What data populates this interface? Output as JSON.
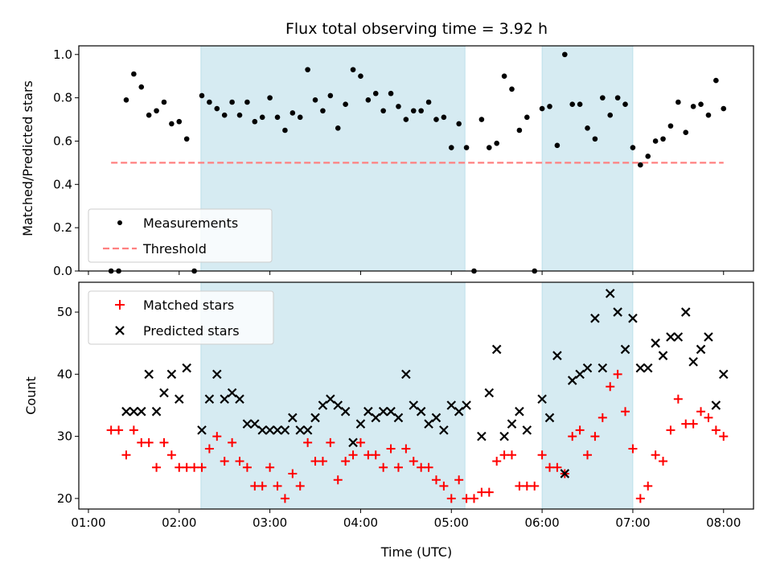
{
  "chart_data": [
    {
      "type": "scatter",
      "title": "Flux total observing time = 3.92 h",
      "xlabel": "",
      "ylabel": "Matched/Predicted stars",
      "ylim": [
        0,
        1.04
      ],
      "xlim_hours": [
        0.894,
        8.33
      ],
      "yticks": [
        "0.0",
        "0.2",
        "0.4",
        "0.6",
        "0.8",
        "1.0"
      ],
      "ytick_values": [
        0,
        0.2,
        0.4,
        0.6,
        0.8,
        1.0
      ],
      "time_start_hours": 1.25,
      "time_step_minutes": 5,
      "shaded_intervals_hours": [
        [
          2.24,
          5.15
        ],
        [
          6.0,
          7.0
        ]
      ],
      "threshold": {
        "value": 0.5,
        "from_hours": 1.25,
        "to_hours": 8.0
      },
      "legend": {
        "placement": "lower-left",
        "entries": [
          "Measurements",
          "Threshold"
        ]
      },
      "series": [
        {
          "name": "Measurements",
          "values": [
            0,
            0,
            0.79,
            0.91,
            0.85,
            0.72,
            0.74,
            0.78,
            0.68,
            0.69,
            0.61,
            0,
            0.81,
            0.78,
            0.75,
            0.72,
            0.78,
            0.72,
            0.78,
            0.69,
            0.71,
            0.8,
            0.71,
            0.65,
            0.73,
            0.71,
            0.93,
            0.79,
            0.74,
            0.81,
            0.66,
            0.77,
            0.93,
            0.9,
            0.79,
            0.82,
            0.74,
            0.82,
            0.76,
            0.7,
            0.74,
            0.74,
            0.78,
            0.7,
            0.71,
            0.57,
            0.68,
            0.57,
            0,
            0.7,
            0.57,
            0.59,
            0.9,
            0.84,
            0.65,
            0.71,
            0,
            0.75,
            0.76,
            0.58,
            1.0,
            0.77,
            0.77,
            0.66,
            0.61,
            0.8,
            0.72,
            0.8,
            0.77,
            0.57,
            0.49,
            0.53,
            0.6,
            0.61,
            0.67,
            0.78,
            0.64,
            0.76,
            0.77,
            0.72,
            0.88,
            0.75
          ]
        }
      ]
    },
    {
      "type": "scatter",
      "xlabel": "Time (UTC)",
      "ylabel": "Count",
      "ylim": [
        18.3,
        54.8
      ],
      "xlim_hours": [
        0.894,
        8.33
      ],
      "xticks": [
        "01:00",
        "02:00",
        "03:00",
        "04:00",
        "05:00",
        "06:00",
        "07:00",
        "08:00"
      ],
      "xtick_hours": [
        1,
        2,
        3,
        4,
        5,
        6,
        7,
        8
      ],
      "yticks": [
        "20",
        "30",
        "40",
        "50"
      ],
      "ytick_values": [
        20,
        30,
        40,
        50
      ],
      "time_start_hours": 1.25,
      "time_step_minutes": 5,
      "shaded_intervals_hours": [
        [
          2.24,
          5.15
        ],
        [
          6.0,
          7.0
        ]
      ],
      "legend": {
        "placement": "upper-left",
        "entries": [
          "Matched stars",
          "Predicted stars"
        ]
      },
      "series": [
        {
          "name": "Matched stars",
          "color": "#ff0000",
          "values": [
            31,
            31,
            27,
            31,
            29,
            29,
            25,
            29,
            27,
            25,
            25,
            25,
            25,
            28,
            30,
            26,
            29,
            26,
            25,
            22,
            22,
            25,
            22,
            20,
            24,
            22,
            29,
            26,
            26,
            29,
            23,
            26,
            27,
            29,
            27,
            27,
            25,
            28,
            25,
            28,
            26,
            25,
            25,
            23,
            22,
            20,
            23,
            20,
            20,
            21,
            21,
            26,
            27,
            27,
            22,
            22,
            22,
            27,
            25,
            25,
            24,
            30,
            31,
            27,
            30,
            33,
            38,
            40,
            34,
            28,
            20,
            22,
            27,
            26,
            31,
            36,
            32,
            32,
            34,
            33,
            31,
            30
          ]
        },
        {
          "name": "Predicted stars",
          "color": "#000000",
          "values": [
            null,
            null,
            34,
            34,
            34,
            40,
            34,
            37,
            40,
            36,
            41,
            null,
            31,
            36,
            40,
            36,
            37,
            36,
            32,
            32,
            31,
            31,
            31,
            31,
            33,
            31,
            31,
            33,
            35,
            36,
            35,
            34,
            29,
            32,
            34,
            33,
            34,
            34,
            33,
            40,
            35,
            34,
            32,
            33,
            31,
            35,
            34,
            35,
            null,
            30,
            37,
            44,
            30,
            32,
            34,
            31,
            null,
            36,
            33,
            43,
            24,
            39,
            40,
            41,
            49,
            41,
            53,
            50,
            44,
            49,
            41,
            41,
            45,
            43,
            46,
            46,
            50,
            42,
            44,
            46,
            35,
            40
          ]
        }
      ]
    }
  ],
  "colors": {
    "shade": "#add8e6",
    "threshold": "#ff8080",
    "matched": "#ff0000",
    "predicted": "#000000",
    "measurement": "#000000"
  }
}
